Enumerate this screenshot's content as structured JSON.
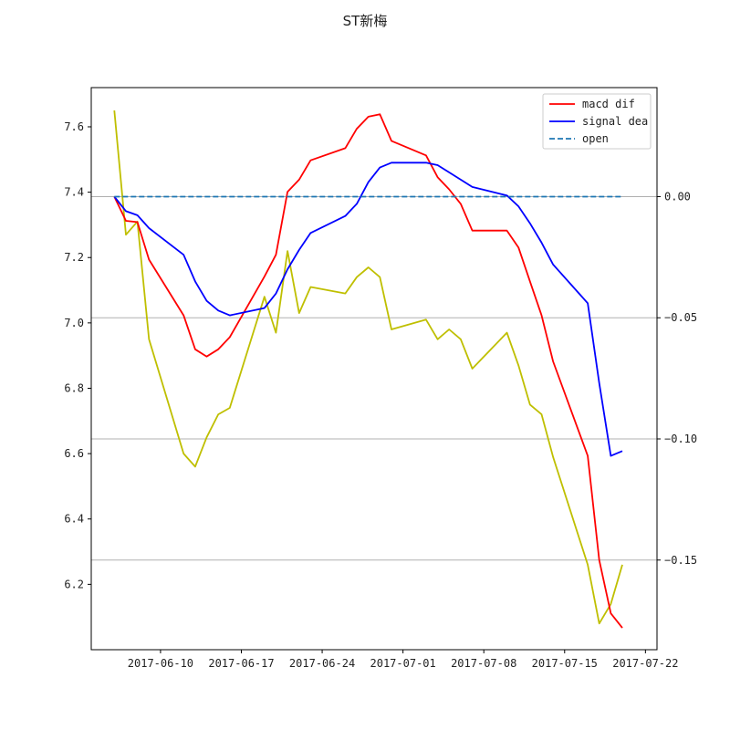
{
  "chart_data": {
    "type": "line",
    "title": "ST新梅",
    "xlabel": "",
    "ylabel": "",
    "x_ticks": [
      "2017-06-10",
      "2017-06-17",
      "2017-06-24",
      "2017-07-01",
      "2017-07-08",
      "2017-07-15",
      "2017-07-22"
    ],
    "x_tick_values": [
      "2017-06-10",
      "2017-06-17",
      "2017-06-24",
      "2017-07-01",
      "2017-07-08",
      "2017-07-15",
      "2017-07-22"
    ],
    "xlim": [
      "2017-06-04",
      "2017-07-23"
    ],
    "y_left": {
      "lim": [
        6.0,
        7.72
      ],
      "ticks": [
        6.2,
        6.4,
        6.6,
        6.8,
        7.0,
        7.2,
        7.4,
        7.6
      ],
      "tick_labels": [
        "6.2",
        "6.4",
        "6.6",
        "6.8",
        "7.0",
        "7.2",
        "7.4",
        "7.6"
      ]
    },
    "y_right": {
      "lim": [
        -0.187,
        0.045
      ],
      "ticks": [
        0.0,
        -0.05,
        -0.1,
        -0.15
      ],
      "tick_labels": [
        "0.00",
        "−0.05",
        "−0.10",
        "−0.15"
      ],
      "grid": true
    },
    "legend": {
      "position": "top-right",
      "entries": [
        "macd dif",
        "signal dea",
        "open"
      ]
    },
    "colors": {
      "dif": "#ff0000",
      "dea": "#0000ff",
      "open_line": "#1f77b4",
      "price": "#bfbf00",
      "grid": "#b0b0b0"
    },
    "x": [
      "2017-06-06",
      "2017-06-07",
      "2017-06-08",
      "2017-06-09",
      "2017-06-12",
      "2017-06-13",
      "2017-06-14",
      "2017-06-15",
      "2017-06-16",
      "2017-06-19",
      "2017-06-20",
      "2017-06-21",
      "2017-06-22",
      "2017-06-23",
      "2017-06-26",
      "2017-06-27",
      "2017-06-28",
      "2017-06-29",
      "2017-06-30",
      "2017-07-03",
      "2017-07-04",
      "2017-07-05",
      "2017-07-06",
      "2017-07-07",
      "2017-07-10",
      "2017-07-11",
      "2017-07-12",
      "2017-07-13",
      "2017-07-14",
      "2017-07-17",
      "2017-07-18",
      "2017-07-19",
      "2017-07-20"
    ],
    "series": [
      {
        "name": "macd dif",
        "axis": "right",
        "values": [
          0.0,
          -0.01,
          -0.0105,
          -0.026,
          -0.049,
          -0.063,
          -0.066,
          -0.063,
          -0.058,
          -0.033,
          -0.024,
          0.002,
          0.007,
          0.015,
          0.02,
          0.028,
          0.033,
          0.034,
          0.023,
          0.017,
          0.008,
          0.003,
          -0.003,
          -0.014,
          -0.014,
          -0.021,
          -0.035,
          -0.049,
          -0.068,
          -0.107,
          -0.15,
          -0.172,
          -0.178
        ]
      },
      {
        "name": "signal dea",
        "axis": "right",
        "values": [
          0.0,
          -0.006,
          -0.0077,
          -0.013,
          -0.024,
          -0.035,
          -0.043,
          -0.047,
          -0.049,
          -0.046,
          -0.04,
          -0.03,
          -0.022,
          -0.015,
          -0.008,
          -0.003,
          0.006,
          0.012,
          0.014,
          0.014,
          0.013,
          0.01,
          0.007,
          0.004,
          0.0005,
          -0.004,
          -0.011,
          -0.019,
          -0.028,
          -0.044,
          -0.077,
          -0.107,
          -0.105
        ]
      },
      {
        "name": "open",
        "axis": "right",
        "values": [
          0.0,
          0.0,
          0.0,
          0.0,
          0.0,
          0.0,
          0.0,
          0.0,
          0.0,
          0.0,
          0.0,
          0.0,
          0.0,
          0.0,
          0.0,
          0.0,
          0.0,
          0.0,
          0.0,
          0.0,
          0.0,
          0.0,
          0.0,
          0.0,
          0.0,
          0.0,
          0.0,
          0.0,
          0.0,
          0.0,
          0.0,
          0.0,
          0.0
        ]
      },
      {
        "name": "",
        "axis": "left",
        "values": [
          7.65,
          7.27,
          7.31,
          6.95,
          6.6,
          6.56,
          6.65,
          6.72,
          6.74,
          7.08,
          6.97,
          7.22,
          7.03,
          7.11,
          7.09,
          7.14,
          7.17,
          7.14,
          6.98,
          7.01,
          6.95,
          6.98,
          6.95,
          6.86,
          6.97,
          6.87,
          6.75,
          6.72,
          6.59,
          6.26,
          6.08,
          6.14,
          6.26
        ]
      }
    ]
  }
}
